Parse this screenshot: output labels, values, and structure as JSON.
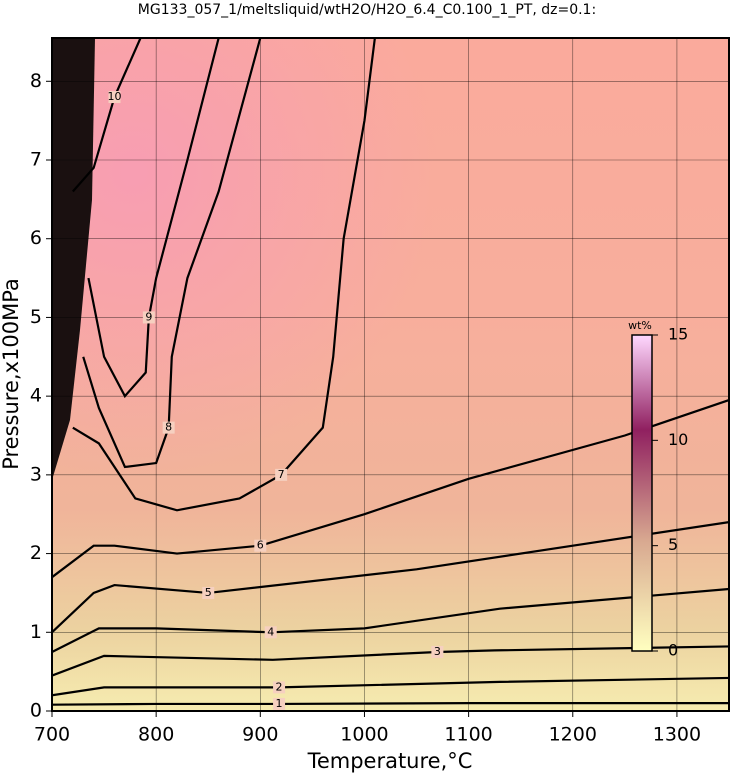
{
  "chart_data": {
    "type": "contour",
    "title": "MG133_057_1/meltsliquid/wtH2O/H2O_6.4_C0.100_1_PT, dz=0.1:",
    "x_label": "Temperature,°C",
    "y_label": "Pressure,x100MPa",
    "xlim": [
      700,
      1350
    ],
    "ylim": [
      0,
      8.55
    ],
    "xticks": [
      700,
      800,
      900,
      1000,
      1100,
      1200,
      1300
    ],
    "yticks": [
      0,
      1,
      2,
      3,
      4,
      5,
      6,
      7,
      8
    ],
    "grid": true,
    "contours": [
      {
        "level": 1,
        "x": [
          700,
          800,
          918,
          1100,
          1350
        ],
        "y": [
          0.08,
          0.09,
          0.09,
          0.1,
          0.1
        ]
      },
      {
        "level": 2,
        "x": [
          700,
          750,
          918,
          1130,
          1350
        ],
        "y": [
          0.2,
          0.3,
          0.3,
          0.37,
          0.42
        ]
      },
      {
        "level": 3,
        "x": [
          700,
          750,
          912,
          1070,
          1125,
          1350
        ],
        "y": [
          0.45,
          0.7,
          0.65,
          0.75,
          0.77,
          0.82
        ]
      },
      {
        "level": 4,
        "x": [
          700,
          745,
          800,
          910,
          1000,
          1130,
          1350
        ],
        "y": [
          0.75,
          1.05,
          1.05,
          1.0,
          1.05,
          1.3,
          1.55
        ]
      },
      {
        "level": 5,
        "x": [
          700,
          740,
          760,
          850,
          1050,
          1200,
          1350
        ],
        "y": [
          1.0,
          1.5,
          1.6,
          1.5,
          1.8,
          2.1,
          2.4
        ]
      },
      {
        "level": 6,
        "x": [
          700,
          740,
          760,
          820,
          900,
          1000,
          1100,
          1250,
          1350
        ],
        "y": [
          1.7,
          2.1,
          2.1,
          2.0,
          2.1,
          2.5,
          2.95,
          3.5,
          3.95
        ]
      },
      {
        "level": 7,
        "x": [
          720,
          745,
          780,
          820,
          880,
          920,
          960,
          970,
          980,
          1000,
          1010
        ],
        "y": [
          3.6,
          3.4,
          2.7,
          2.55,
          2.7,
          3.0,
          3.6,
          4.5,
          6.0,
          7.5,
          8.55
        ]
      },
      {
        "level": 8,
        "x": [
          730,
          745,
          770,
          800,
          812,
          815,
          830,
          860,
          900
        ],
        "y": [
          4.5,
          3.85,
          3.1,
          3.15,
          3.6,
          4.5,
          5.5,
          6.6,
          8.55
        ]
      },
      {
        "level": 9,
        "x": [
          735,
          750,
          770,
          790,
          793,
          800,
          830,
          860
        ],
        "y": [
          5.5,
          4.5,
          4.0,
          4.3,
          5.0,
          5.5,
          7.0,
          8.55
        ]
      },
      {
        "level": 10,
        "x": [
          720,
          740,
          760,
          785
        ],
        "y": [
          6.6,
          6.9,
          7.8,
          8.55
        ]
      }
    ],
    "colorbar": {
      "label": "wt%",
      "lim": [
        0,
        15
      ],
      "ticks": [
        0,
        5,
        10,
        15
      ]
    }
  }
}
